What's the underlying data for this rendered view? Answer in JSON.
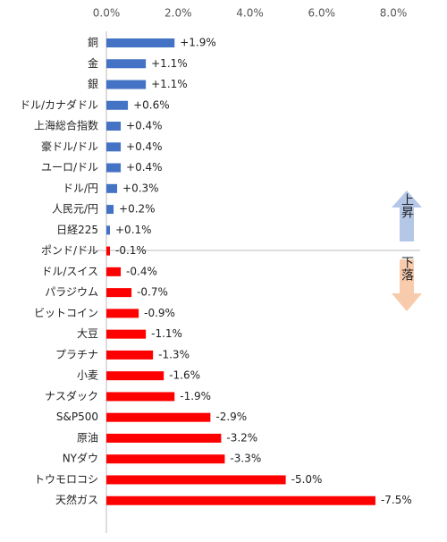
{
  "chart_data": {
    "type": "bar",
    "orientation": "horizontal",
    "categories": [
      "銅",
      "金",
      "銀",
      "ドル/カナダドル",
      "上海総合指数",
      "豪ドル/ドル",
      "ユーロ/ドル",
      "ドル/円",
      "人民元/円",
      "日経225",
      "ポンド/ドル",
      "ドル/スイス",
      "パラジウム",
      "ビットコイン",
      "大豆",
      "プラチナ",
      "小麦",
      "ナスダック",
      "S&P500",
      "原油",
      "NYダウ",
      "トウモロコシ",
      "天然ガス"
    ],
    "values": [
      1.9,
      1.1,
      1.1,
      0.6,
      0.4,
      0.4,
      0.4,
      0.3,
      0.2,
      0.1,
      -0.1,
      -0.4,
      -0.7,
      -0.9,
      -1.1,
      -1.3,
      -1.6,
      -1.9,
      -2.9,
      -3.2,
      -3.3,
      -5.0,
      -7.5
    ],
    "value_labels": [
      "+1.9%",
      "+1.1%",
      "+1.1%",
      "+0.6%",
      "+0.4%",
      "+0.4%",
      "+0.4%",
      "+0.3%",
      "+0.2%",
      "+0.1%",
      "-0.1%",
      "-0.4%",
      "-0.7%",
      "-0.9%",
      "-1.1%",
      "-1.3%",
      "-1.6%",
      "-1.9%",
      "-2.9%",
      "-3.2%",
      "-3.3%",
      "-5.0%",
      "-7.5%"
    ],
    "positive_color": "#4472c4",
    "negative_color": "#ff0000",
    "xlim": [
      0,
      8
    ],
    "xticks": [
      {
        "value": 0,
        "label": "0.0%"
      },
      {
        "value": 2,
        "label": "2.0%"
      },
      {
        "value": 4,
        "label": "4.0%"
      },
      {
        "value": 6,
        "label": "6.0%"
      },
      {
        "value": 8,
        "label": "8.0%"
      }
    ],
    "up_label": "上昇",
    "down_label": "下落"
  }
}
